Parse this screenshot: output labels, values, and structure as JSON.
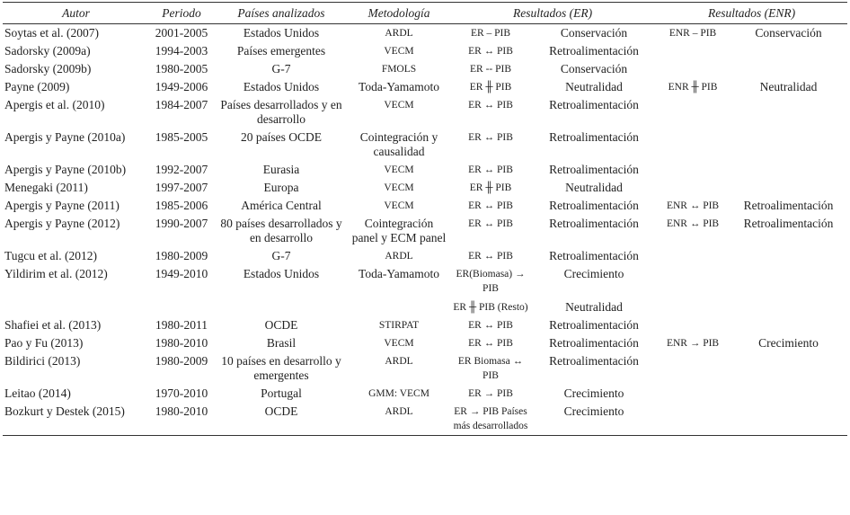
{
  "header": {
    "columns": [
      "Autor",
      "Periodo",
      "Países analizados",
      "Metodología",
      "Resultados (ER)",
      "Resultados (ENR)"
    ]
  },
  "table": {
    "rows": [
      {
        "autor": "Soytas et al. (2007)",
        "periodo": "2001-2005",
        "paises": "Estados Unidos",
        "metodologia": "ARDL",
        "er": [
          {
            "relacion": "ER – PIB",
            "resultado": "Conservación"
          }
        ],
        "enr": [
          {
            "relacion": "ENR – PIB",
            "resultado": "Conservación"
          }
        ]
      },
      {
        "autor": "Sadorsky (2009a)",
        "periodo": "1994-2003",
        "paises": "Países emergentes",
        "metodologia": "VECM",
        "er": [
          {
            "relacion": "ER ↔ PIB",
            "resultado": "Retroalimentación"
          }
        ]
      },
      {
        "autor": "Sadorsky (2009b)",
        "periodo": "1980-2005",
        "paises": "G-7",
        "metodologia": "FMOLS",
        "er": [
          {
            "relacion": "ER -- PIB",
            "resultado": "Conservación"
          }
        ]
      },
      {
        "autor": "Payne (2009)",
        "periodo": "1949-2006",
        "paises": "Estados Unidos",
        "metodologia": "Toda-Yamamoto",
        "er": [
          {
            "relacion": "ER ╫ PIB",
            "resultado": "Neutralidad"
          }
        ],
        "enr": [
          {
            "relacion": "ENR ╫ PIB",
            "resultado": "Neutralidad"
          }
        ]
      },
      {
        "autor": "Apergis et al. (2010)",
        "periodo": "1984-2007",
        "paises": "Países desarrollados y en desarrollo",
        "metodologia": "VECM",
        "er": [
          {
            "relacion": "ER ↔ PIB",
            "resultado": "Retroalimentación"
          }
        ]
      },
      {
        "autor": "Apergis y Payne (2010a)",
        "periodo": "1985-2005",
        "paises": "20 países OCDE",
        "metodologia": "Cointegración y causalidad",
        "er": [
          {
            "relacion": "ER ↔ PIB",
            "resultado": "Retroalimentación"
          }
        ]
      },
      {
        "autor": "Apergis y Payne (2010b)",
        "periodo": "1992-2007",
        "paises": "Eurasia",
        "metodologia": "VECM",
        "er": [
          {
            "relacion": "ER ↔ PIB",
            "resultado": "Retroalimentación"
          }
        ]
      },
      {
        "autor": "Menegaki (2011)",
        "periodo": "1997-2007",
        "paises": "Europa",
        "metodologia": "VECM",
        "er": [
          {
            "relacion": "ER ╫ PIB",
            "resultado": "Neutralidad"
          }
        ]
      },
      {
        "autor": "Apergis y Payne (2011)",
        "periodo": "1985-2006",
        "paises": "América Central",
        "metodologia": "VECM",
        "er": [
          {
            "relacion": "ER ↔ PIB",
            "resultado": "Retroalimentación"
          }
        ],
        "enr": [
          {
            "relacion": "ENR ↔ PIB",
            "resultado": "Retroalimentación"
          }
        ]
      },
      {
        "autor": "Apergis y Payne (2012)",
        "periodo": "1990-2007",
        "paises": "80 países desarrollados y en desarrollo",
        "metodologia": "Cointegración panel y ECM panel",
        "er": [
          {
            "relacion": "ER ↔ PIB",
            "resultado": "Retroalimentación"
          }
        ],
        "enr": [
          {
            "relacion": "ENR ↔ PIB",
            "resultado": "Retroalimentación"
          }
        ]
      },
      {
        "autor": "Tugcu et al. (2012)",
        "periodo": "1980-2009",
        "paises": "G-7",
        "metodologia": "ARDL",
        "er": [
          {
            "relacion": "ER ↔ PIB",
            "resultado": "Retroalimentación"
          }
        ]
      },
      {
        "autor": "Yildirim et al. (2012)",
        "periodo": "1949-2010",
        "paises": "Estados Unidos",
        "metodologia": "Toda-Yamamoto",
        "er": [
          {
            "relacion": "ER(Biomasa) → PIB",
            "resultado": "Crecimiento"
          },
          {
            "relacion": "ER ╫ PIB (Resto)",
            "resultado": "Neutralidad"
          }
        ]
      },
      {
        "autor": "Shafiei et al. (2013)",
        "periodo": "1980-2011",
        "paises": "OCDE",
        "metodologia": "STIRPAT",
        "er": [
          {
            "relacion": "ER ↔ PIB",
            "resultado": "Retroalimentación"
          }
        ]
      },
      {
        "autor": "Pao y Fu (2013)",
        "periodo": "1980-2010",
        "paises": "Brasil",
        "metodologia": "VECM",
        "er": [
          {
            "relacion": "ER ↔ PIB",
            "resultado": "Retroalimentación"
          }
        ],
        "enr": [
          {
            "relacion": "ENR → PIB",
            "resultado": "Crecimiento"
          }
        ]
      },
      {
        "autor": "Bildirici (2013)",
        "periodo": "1980-2009",
        "paises": "10 países en desarrollo y emergentes",
        "metodologia": "ARDL",
        "er": [
          {
            "relacion": "ER Biomasa ↔ PIB",
            "resultado": "Retroalimentación"
          }
        ]
      },
      {
        "autor": "Leitao (2014)",
        "periodo": "1970-2010",
        "paises": "Portugal",
        "metodologia": "GMM: VECM",
        "er": [
          {
            "relacion": "ER → PIB",
            "resultado": "Crecimiento"
          }
        ]
      },
      {
        "autor": "Bozkurt y Destek (2015)",
        "periodo": "1980-2010",
        "paises": "OCDE",
        "metodologia": "ARDL",
        "er": [
          {
            "relacion": "ER → PIB Países más desarrollados",
            "resultado": "Crecimiento"
          }
        ]
      }
    ]
  }
}
